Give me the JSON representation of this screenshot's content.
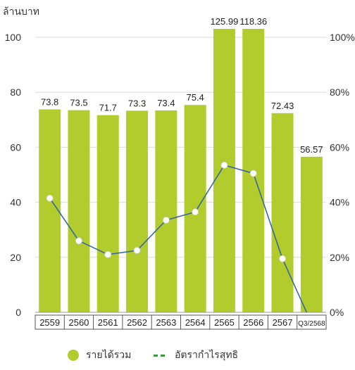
{
  "chart_data": {
    "type": "bar",
    "y_unit_label": "ล้านบาท",
    "categories": [
      "2559",
      "2560",
      "2561",
      "2562",
      "2563",
      "2564",
      "2565",
      "2566",
      "2567",
      "Q3/2568"
    ],
    "series": [
      {
        "name": "รายได้รวม",
        "type": "bar",
        "axis": "left",
        "values": [
          73.8,
          73.5,
          71.7,
          73.3,
          73.4,
          75.4,
          125.99,
          118.36,
          72.43,
          56.57
        ],
        "value_labels": [
          "73.8",
          "73.5",
          "71.7",
          "73.3",
          "73.4",
          "75.4",
          "125.99",
          "118.36",
          "72.43",
          "56.57"
        ],
        "color": "#b2cc2e"
      },
      {
        "name": "อัตรากำไรสุทธิ",
        "type": "line",
        "axis": "right",
        "values": [
          41.5,
          26,
          21,
          22.5,
          33.5,
          36.5,
          53.5,
          50.5,
          19.5,
          -4
        ],
        "color": "#2f62a8",
        "legend_color": "#3a9a3a"
      }
    ],
    "ylim_left": [
      0,
      100
    ],
    "ylim_right": [
      0,
      100
    ],
    "left_ticks": [
      "0",
      "20",
      "40",
      "60",
      "80",
      "100"
    ],
    "right_ticks": [
      "0%",
      "20%",
      "40%",
      "60%",
      "80%",
      "100%"
    ],
    "grid": true,
    "legend_position": "bottom"
  }
}
